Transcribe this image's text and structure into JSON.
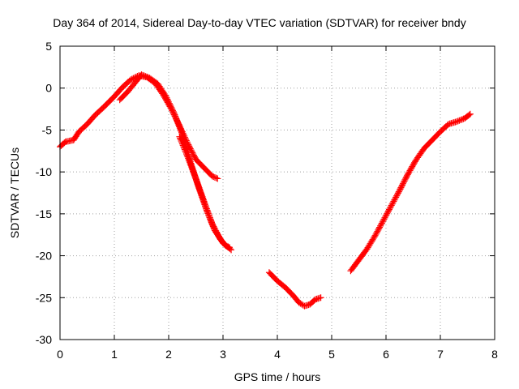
{
  "chart_data": {
    "type": "scatter",
    "title": "Day 364 of 2014, Sidereal Day-to-day VTEC variation (SDTVAR) for receiver bndy",
    "xlabel": "GPS time / hours",
    "ylabel": "SDTVAR / TECUs",
    "xlim": [
      0,
      8
    ],
    "ylim": [
      -30,
      5
    ],
    "xticks": [
      0,
      1,
      2,
      3,
      4,
      5,
      6,
      7,
      8
    ],
    "yticks": [
      5,
      0,
      -5,
      -10,
      -15,
      -20,
      -25,
      -30
    ],
    "grid": true,
    "marker": "+",
    "color": "#ff0000",
    "series": [
      {
        "values": [
          [
            0.0,
            -7.0
          ],
          [
            0.1,
            -6.4
          ],
          [
            0.25,
            -6.2
          ],
          [
            0.35,
            -5.2
          ],
          [
            0.5,
            -4.3
          ],
          [
            0.65,
            -3.2
          ],
          [
            0.8,
            -2.3
          ],
          [
            1.0,
            -1.0
          ],
          [
            1.15,
            0.1
          ],
          [
            1.3,
            1.0
          ],
          [
            1.45,
            1.5
          ],
          [
            1.6,
            1.3
          ],
          [
            1.75,
            0.6
          ],
          [
            1.9,
            -0.8
          ],
          [
            2.05,
            -2.5
          ],
          [
            2.2,
            -4.5
          ],
          [
            2.35,
            -6.6
          ],
          [
            2.5,
            -8.5
          ],
          [
            2.65,
            -9.5
          ],
          [
            2.8,
            -10.5
          ],
          [
            2.9,
            -10.8
          ]
        ]
      },
      {
        "values": [
          [
            1.1,
            -1.4
          ],
          [
            1.25,
            -0.4
          ],
          [
            1.4,
            0.8
          ],
          [
            1.5,
            1.6
          ],
          [
            1.65,
            1.2
          ],
          [
            1.8,
            0.5
          ],
          [
            1.95,
            -1.0
          ],
          [
            2.1,
            -3.0
          ],
          [
            2.25,
            -5.5
          ],
          [
            2.4,
            -8.8
          ],
          [
            2.55,
            -11.8
          ],
          [
            2.7,
            -14.6
          ],
          [
            2.85,
            -17.0
          ],
          [
            3.0,
            -18.5
          ],
          [
            3.15,
            -19.3
          ]
        ]
      },
      {
        "values": [
          [
            2.2,
            -5.8
          ],
          [
            2.35,
            -8.2
          ],
          [
            2.5,
            -10.8
          ],
          [
            2.65,
            -13.5
          ],
          [
            2.8,
            -16.2
          ],
          [
            2.95,
            -18.0
          ],
          [
            3.05,
            -18.8
          ],
          [
            3.12,
            -19.0
          ]
        ]
      },
      {
        "values": [
          [
            3.85,
            -22.0
          ],
          [
            4.0,
            -23.0
          ],
          [
            4.15,
            -23.8
          ],
          [
            4.3,
            -24.8
          ],
          [
            4.4,
            -25.6
          ],
          [
            4.5,
            -26.0
          ],
          [
            4.6,
            -25.8
          ],
          [
            4.7,
            -25.2
          ],
          [
            4.8,
            -25.0
          ]
        ]
      },
      {
        "values": [
          [
            5.35,
            -21.8
          ],
          [
            5.5,
            -20.5
          ],
          [
            5.65,
            -19.2
          ],
          [
            5.8,
            -17.6
          ],
          [
            5.95,
            -15.8
          ],
          [
            6.1,
            -14.0
          ],
          [
            6.25,
            -12.2
          ],
          [
            6.4,
            -10.3
          ],
          [
            6.55,
            -8.6
          ],
          [
            6.7,
            -7.2
          ],
          [
            6.85,
            -6.2
          ],
          [
            7.0,
            -5.2
          ],
          [
            7.15,
            -4.3
          ],
          [
            7.3,
            -4.0
          ],
          [
            7.45,
            -3.6
          ],
          [
            7.55,
            -3.1
          ]
        ]
      }
    ]
  }
}
